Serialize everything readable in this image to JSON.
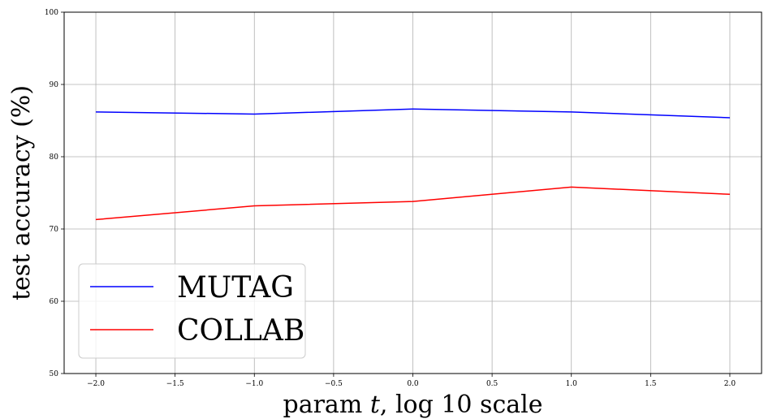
{
  "chart_data": {
    "type": "line",
    "xlabel_parts": [
      "param ",
      "t",
      ", log 10 scale"
    ],
    "ylabel": "test accuracy (%)",
    "xlim": [
      -2.2,
      2.2
    ],
    "ylim": [
      50,
      100
    ],
    "x_ticks": [
      -2.0,
      -1.5,
      -1.0,
      -0.5,
      0.0,
      0.5,
      1.0,
      1.5,
      2.0
    ],
    "x_tick_labels": [
      "−2.0",
      "−1.5",
      "−1.0",
      "−0.5",
      "0.0",
      "0.5",
      "1.0",
      "1.5",
      "2.0"
    ],
    "y_ticks": [
      50,
      60,
      70,
      80,
      90,
      100
    ],
    "y_tick_labels": [
      "50",
      "60",
      "70",
      "80",
      "90",
      "100"
    ],
    "grid": true,
    "legend_position": "lower-left",
    "series": [
      {
        "name": "MUTAG",
        "color": "#0000ff",
        "x": [
          -2,
          -1,
          0,
          1,
          2
        ],
        "y": [
          86.2,
          85.9,
          86.6,
          86.2,
          85.4
        ]
      },
      {
        "name": "COLLAB",
        "color": "#ff0000",
        "x": [
          -2,
          -1,
          0,
          1,
          2
        ],
        "y": [
          71.3,
          73.2,
          73.8,
          75.8,
          74.8
        ]
      }
    ]
  }
}
